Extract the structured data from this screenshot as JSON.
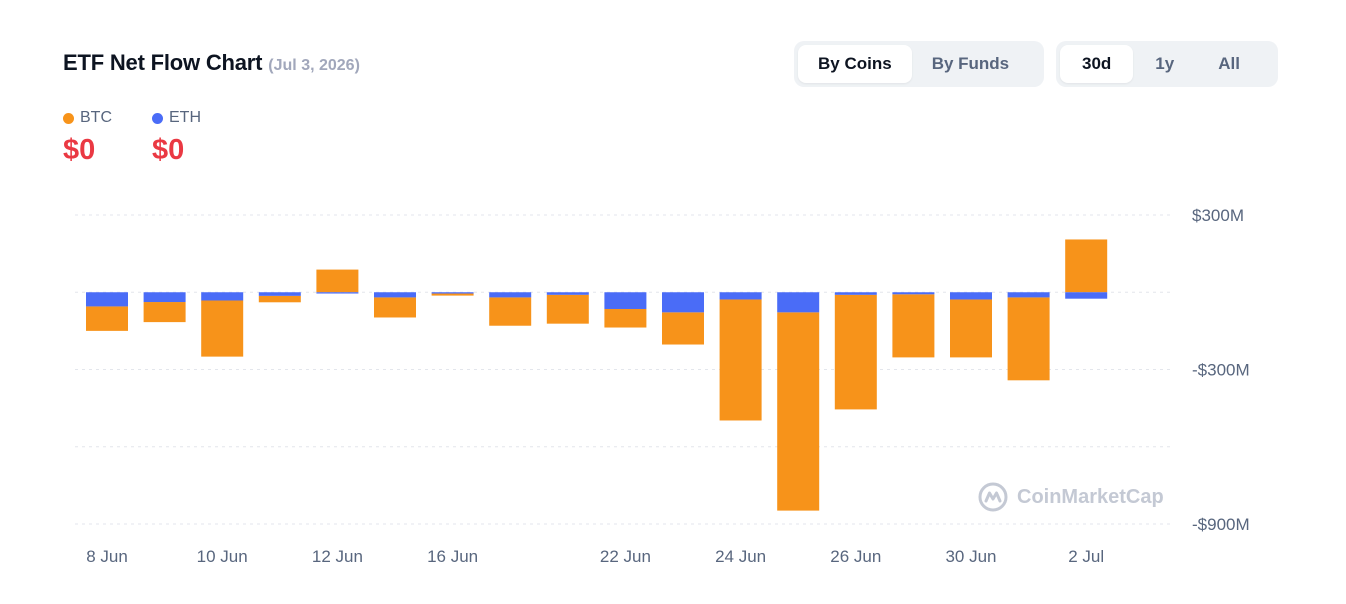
{
  "header": {
    "title": "ETF Net Flow Chart",
    "date": "(Jul 3, 2026)"
  },
  "toggles": {
    "group": [
      {
        "label": "By Coins",
        "active": true
      },
      {
        "label": "By Funds",
        "active": false
      }
    ],
    "range": [
      {
        "label": "30d",
        "active": true
      },
      {
        "label": "1y",
        "active": false
      },
      {
        "label": "All",
        "active": false
      }
    ]
  },
  "legend": [
    {
      "name": "BTC",
      "color": "#f7931a",
      "value": "$0"
    },
    {
      "name": "ETH",
      "color": "#4a6cf7",
      "value": "$0"
    }
  ],
  "watermark": "CoinMarketCap",
  "chart_data": {
    "type": "bar",
    "stacked": true,
    "x": [
      "8 Jun",
      "9 Jun",
      "10 Jun",
      "11 Jun",
      "12 Jun",
      "15 Jun",
      "16 Jun",
      "17 Jun",
      "18 Jun",
      "22 Jun",
      "23 Jun",
      "24 Jun",
      "25 Jun",
      "26 Jun",
      "29 Jun",
      "30 Jun",
      "1 Jul",
      "2 Jul"
    ],
    "x_tick_labels": [
      "8 Jun",
      "10 Jun",
      "12 Jun",
      "16 Jun",
      "22 Jun",
      "24 Jun",
      "26 Jun",
      "30 Jun",
      "2 Jul"
    ],
    "series": [
      {
        "name": "BTC",
        "color": "#f7931a",
        "values": [
          -95,
          -78,
          -218,
          -25,
          88,
          -78,
          -8,
          -110,
          -112,
          -72,
          -125,
          -470,
          -770,
          -445,
          -245,
          -225,
          -322,
          205
        ]
      },
      {
        "name": "ETH",
        "color": "#4a6cf7",
        "values": [
          -55,
          -38,
          -32,
          -14,
          -5,
          -20,
          -5,
          -20,
          -10,
          -65,
          -78,
          -28,
          -78,
          -10,
          -8,
          -28,
          -20,
          -25
        ]
      }
    ],
    "y_ticks": [
      300,
      0,
      -300,
      -600,
      -900
    ],
    "y_tick_labels": [
      "$300M",
      "",
      "-$300M",
      "",
      "-$900M"
    ],
    "ylim": [
      -900,
      300
    ],
    "grid": true,
    "legend_position": "top-left"
  }
}
